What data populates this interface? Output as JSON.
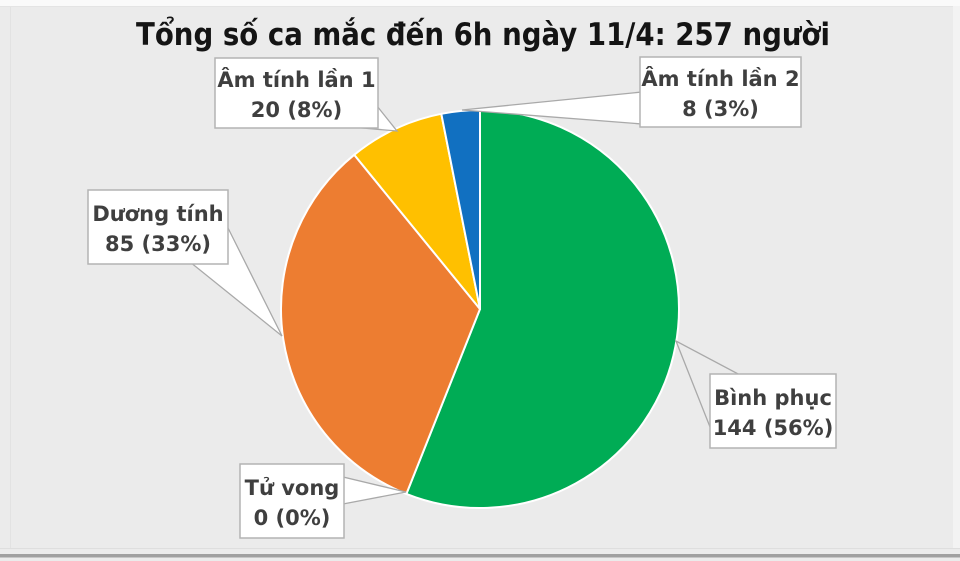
{
  "chart_data": {
    "type": "pie",
    "title": "Tổng số ca mắc đến 6h ngày 11/4: 257 người",
    "total": 257,
    "start": "12-oclock",
    "direction": "clockwise",
    "legend_position": "callout-data-labels",
    "categories": [
      "Bình phục",
      "Tử vong",
      "Dương tính",
      "Âm tính lần 1",
      "Âm tính lần 2"
    ],
    "values": [
      144,
      0,
      85,
      20,
      8
    ],
    "percents": [
      56,
      0,
      33,
      8,
      3
    ],
    "colors": [
      "#00AC55",
      null,
      "#ED7D31",
      "#FFC000",
      "#1170C1"
    ],
    "callouts": [
      {
        "category": "Bình phục",
        "line1": "Bình phục",
        "line2": "144 (56%)"
      },
      {
        "category": "Tử vong",
        "line1": "Tử vong",
        "line2": "0 (0%)"
      },
      {
        "category": "Dương tính",
        "line1": "Dương tính",
        "line2": "85 (33%)"
      },
      {
        "category": "Âm tính lần 1",
        "line1": "Âm tính lần 1",
        "line2": "20 (8%)"
      },
      {
        "category": "Âm tính lần 2",
        "line1": "Âm tính lần 2",
        "line2": "8 (3%)"
      }
    ],
    "styles": {
      "background": "#EBEBEB",
      "slice_separator": "#FFFFFF",
      "callout_box_fill": "#FFFFFF",
      "callout_box_border": "#B3B3B3",
      "leader_line": "#A9A9A9",
      "callout_text_color": "#3F3F3F",
      "title_color": "#141414",
      "bottom_bar": "#A0A0A0"
    }
  }
}
